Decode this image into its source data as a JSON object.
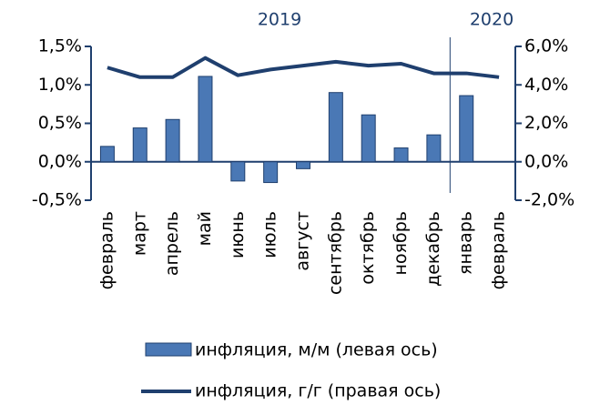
{
  "chart_data": {
    "type": "bar_line",
    "annotations": [
      "2019",
      "2020"
    ],
    "categories": [
      "февраль",
      "март",
      "апрель",
      "май",
      "июнь",
      "июль",
      "август",
      "сентябрь",
      "октябрь",
      "ноябрь",
      "декабрь",
      "январь",
      "февраль"
    ],
    "series": [
      {
        "name": "инфляция, м/м (левая ось)",
        "type": "bar",
        "color": "#4a78b5",
        "values": [
          0.2,
          0.44,
          0.55,
          1.11,
          -0.25,
          -0.27,
          -0.09,
          0.9,
          0.61,
          0.18,
          0.35,
          0.86,
          null
        ]
      },
      {
        "name": "инфляция, г/г (правая ось)",
        "type": "line",
        "axis": "y2",
        "color": "#1f3f6e",
        "values": [
          4.9,
          4.4,
          4.4,
          5.4,
          4.5,
          4.8,
          5.0,
          5.2,
          5.0,
          5.1,
          4.6,
          4.6,
          4.4
        ]
      }
    ],
    "ylim": [
      -0.5,
      1.5
    ],
    "yticks": [
      {
        "value": -0.5,
        "label": "-0,5%"
      },
      {
        "value": 0,
        "label": "0,0%"
      },
      {
        "value": 0.5,
        "label": "0,5%"
      },
      {
        "value": 1,
        "label": "1,0%"
      },
      {
        "value": 1.5,
        "label": "1,5%"
      }
    ],
    "y2lim": [
      -2,
      6
    ],
    "y2ticks": [
      {
        "value": -2,
        "label": "-2,0%"
      },
      {
        "value": 0,
        "label": "0,0%"
      },
      {
        "value": 2,
        "label": "2,0%"
      },
      {
        "value": 4,
        "label": "4,0%"
      },
      {
        "value": 6,
        "label": "6,0%"
      }
    ]
  }
}
